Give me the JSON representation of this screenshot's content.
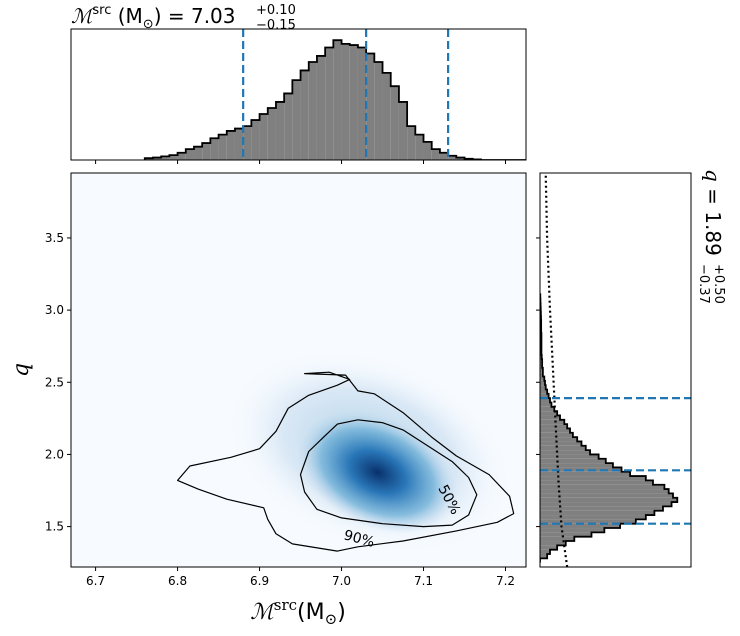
{
  "chart_data": [
    {
      "panel": "joint",
      "type": "heatmap",
      "xlabel": "ℳ",
      "xlabel_sup": "src",
      "xlabel_unit": "(M",
      "xlabel_unit_sub": "⊙",
      "xlabel_unit_close": ")",
      "ylabel": "q",
      "xlim": [
        6.67,
        7.225
      ],
      "ylim": [
        1.22,
        3.95
      ],
      "xticks": [
        "6.7",
        "6.8",
        "6.9",
        "7.0",
        "7.1",
        "7.2"
      ],
      "yticks": [
        "1.5",
        "2.0",
        "2.5",
        "3.0",
        "3.5"
      ],
      "colormap": [
        "#f7fbff",
        "#c6dbef",
        "#6baed6",
        "#2171b5",
        "#08306b"
      ],
      "density_peak": {
        "x": 7.035,
        "y": 1.93
      },
      "contours": [
        {
          "label": "50%",
          "points": [
            [
              6.97,
              1.62
            ],
            [
              6.955,
              1.74
            ],
            [
              6.95,
              1.86
            ],
            [
              6.96,
              2.02
            ],
            [
              6.98,
              2.13
            ],
            [
              6.995,
              2.21
            ],
            [
              7.02,
              2.24
            ],
            [
              7.05,
              2.22
            ],
            [
              7.075,
              2.17
            ],
            [
              7.105,
              2.06
            ],
            [
              7.135,
              1.95
            ],
            [
              7.155,
              1.84
            ],
            [
              7.165,
              1.72
            ],
            [
              7.155,
              1.58
            ],
            [
              7.135,
              1.51
            ],
            [
              7.1,
              1.5
            ],
            [
              7.05,
              1.52
            ],
            [
              7.0,
              1.56
            ]
          ]
        },
        {
          "label": "90%",
          "points": [
            [
              6.905,
              1.63
            ],
            [
              6.86,
              1.69
            ],
            [
              6.825,
              1.76
            ],
            [
              6.8,
              1.82
            ],
            [
              6.815,
              1.92
            ],
            [
              6.865,
              1.98
            ],
            [
              6.9,
              2.04
            ],
            [
              6.92,
              2.16
            ],
            [
              6.935,
              2.32
            ],
            [
              6.96,
              2.41
            ],
            [
              6.995,
              2.48
            ],
            [
              7.01,
              2.52
            ],
            [
              6.985,
              2.57
            ],
            [
              6.955,
              2.56
            ],
            [
              7.005,
              2.55
            ],
            [
              7.02,
              2.44
            ],
            [
              7.04,
              2.42
            ],
            [
              7.075,
              2.29
            ],
            [
              7.11,
              2.12
            ],
            [
              7.14,
              1.99
            ],
            [
              7.18,
              1.86
            ],
            [
              7.205,
              1.71
            ],
            [
              7.21,
              1.59
            ],
            [
              7.19,
              1.53
            ],
            [
              7.14,
              1.47
            ],
            [
              7.075,
              1.4
            ],
            [
              7.02,
              1.36
            ],
            [
              6.995,
              1.33
            ],
            [
              6.94,
              1.38
            ],
            [
              6.92,
              1.45
            ],
            [
              6.91,
              1.55
            ]
          ]
        }
      ]
    },
    {
      "panel": "top-marginal",
      "type": "bar",
      "title": "ℳ",
      "title_sup": "src",
      "title_unit": " (M",
      "title_unit_sub": "⊙",
      "title_value": ") = 7.03",
      "title_plus": "+0.10",
      "title_minus": "−0.15",
      "x": [
        6.765,
        6.775,
        6.785,
        6.795,
        6.805,
        6.815,
        6.825,
        6.835,
        6.845,
        6.855,
        6.865,
        6.875,
        6.885,
        6.895,
        6.905,
        6.915,
        6.925,
        6.935,
        6.945,
        6.955,
        6.965,
        6.975,
        6.985,
        6.995,
        7.005,
        7.015,
        7.025,
        7.035,
        7.045,
        7.055,
        7.065,
        7.075,
        7.085,
        7.095,
        7.105,
        7.115,
        7.125,
        7.135,
        7.145,
        7.155,
        7.165,
        7.175,
        7.185,
        7.195,
        7.205
      ],
      "values": [
        0.015,
        0.02,
        0.03,
        0.04,
        0.06,
        0.09,
        0.11,
        0.14,
        0.18,
        0.21,
        0.24,
        0.26,
        0.28,
        0.33,
        0.38,
        0.43,
        0.48,
        0.55,
        0.66,
        0.74,
        0.81,
        0.86,
        0.93,
        0.99,
        0.96,
        0.95,
        0.93,
        0.88,
        0.81,
        0.72,
        0.61,
        0.48,
        0.28,
        0.21,
        0.15,
        0.09,
        0.06,
        0.035,
        0.02,
        0.01,
        0.005,
        0,
        0,
        0,
        0
      ],
      "quantile_lines": [
        6.88,
        7.03,
        7.13
      ],
      "xlim": [
        6.67,
        7.225
      ]
    },
    {
      "panel": "right-marginal",
      "type": "bar",
      "title": "q",
      "title_value": " = 1.89",
      "title_plus": "+0.50",
      "title_minus": "−0.37",
      "y": [
        1.265,
        1.295,
        1.325,
        1.355,
        1.385,
        1.415,
        1.445,
        1.475,
        1.505,
        1.535,
        1.565,
        1.595,
        1.625,
        1.655,
        1.685,
        1.715,
        1.745,
        1.775,
        1.805,
        1.835,
        1.865,
        1.895,
        1.925,
        1.955,
        1.985,
        2.015,
        2.045,
        2.075,
        2.105,
        2.135,
        2.165,
        2.195,
        2.225,
        2.255,
        2.285,
        2.315,
        2.345,
        2.375,
        2.405,
        2.435,
        2.465,
        2.495,
        2.525,
        2.555,
        2.585,
        2.615,
        2.645,
        2.675,
        2.705,
        2.735,
        2.765,
        2.795,
        2.825,
        2.855,
        2.885,
        2.915,
        2.945,
        2.975,
        3.005,
        3.035,
        3.065,
        3.095
      ],
      "values": [
        0.0,
        0.05,
        0.07,
        0.12,
        0.18,
        0.24,
        0.36,
        0.45,
        0.56,
        0.67,
        0.74,
        0.8,
        0.86,
        0.92,
        0.96,
        0.93,
        0.9,
        0.87,
        0.79,
        0.74,
        0.63,
        0.57,
        0.51,
        0.46,
        0.41,
        0.35,
        0.32,
        0.29,
        0.26,
        0.23,
        0.21,
        0.19,
        0.17,
        0.14,
        0.12,
        0.1,
        0.08,
        0.07,
        0.06,
        0.05,
        0.04,
        0.035,
        0.03,
        0.02,
        0.02,
        0.015,
        0.015,
        0.012,
        0.01,
        0.01,
        0.01,
        0.01,
        0.01,
        0.008,
        0.008,
        0.008,
        0.007,
        0.006,
        0.005,
        0.004,
        0.003,
        0.002
      ],
      "quantile_lines": [
        1.52,
        1.89,
        2.39
      ],
      "prior_dotted": [
        [
          1.22,
          0.19
        ],
        [
          1.5,
          0.15
        ],
        [
          1.8,
          0.13
        ],
        [
          2.2,
          0.11
        ],
        [
          2.6,
          0.09
        ],
        [
          3.0,
          0.07
        ],
        [
          3.5,
          0.05
        ],
        [
          3.95,
          0.04
        ]
      ]
    }
  ],
  "colors": {
    "hist_fill": "#808080",
    "hist_edge": "#000000",
    "quantile_line": "#1f77b4",
    "contour": "#000000"
  }
}
